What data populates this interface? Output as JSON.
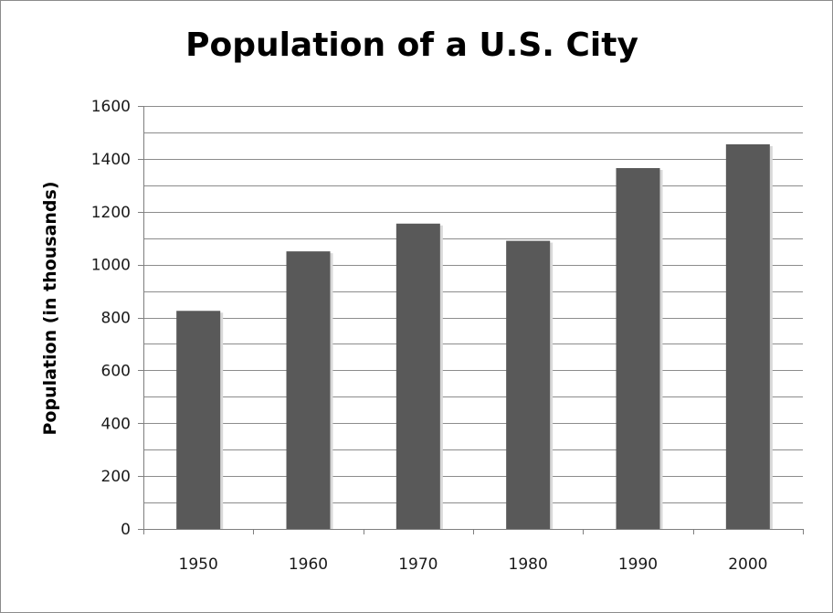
{
  "colors": {
    "bar": "#595959",
    "grid": "#8c8c8c",
    "axis": "#7f7f7f",
    "text": "#000000"
  },
  "chart_data": {
    "type": "bar",
    "title": "Population of a U.S. City",
    "xlabel": "",
    "ylabel": "Population (in thousands)",
    "categories": [
      "1950",
      "1960",
      "1970",
      "1980",
      "1990",
      "2000"
    ],
    "values": [
      825,
      1050,
      1155,
      1090,
      1365,
      1455
    ],
    "ylim": [
      0,
      1600
    ],
    "yticks": [
      "0",
      "200",
      "400",
      "600",
      "800",
      "1000",
      "1200",
      "1400",
      "1600"
    ],
    "grid": "horizontal major and minor",
    "legend": "none"
  }
}
